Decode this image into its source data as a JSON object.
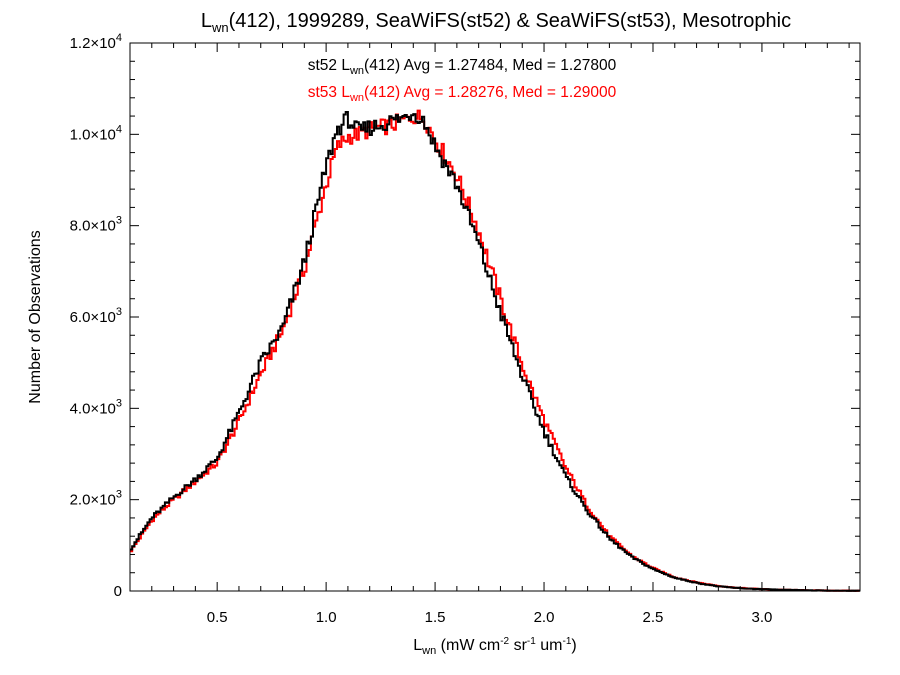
{
  "title": {
    "pre": "L",
    "sub": "wn",
    "post": "(412), 1999289, SeaWiFS(st52) & SeaWiFS(st53), Mesotrophic"
  },
  "annotations": [
    {
      "pre": "st52 L",
      "sub": "wn",
      "post": "(412) Avg = 1.27484, Med = 1.27800",
      "color": "#000000"
    },
    {
      "pre": "st53 L",
      "sub": "wn",
      "post": "(412) Avg = 1.28276, Med = 1.29000",
      "color": "#ff0000"
    }
  ],
  "chart_data": {
    "type": "line",
    "subtype": "histogram-step",
    "xlim": [
      0.1,
      3.45
    ],
    "ylim": [
      0,
      12000
    ],
    "grid": false,
    "xlabel": {
      "pre": "L",
      "sub": "wn",
      "units": " (mW cm",
      "u1": "-2",
      "s1": " sr",
      "u2": "-1",
      "s2": " um",
      "u3": "-1",
      "s3": ")"
    },
    "ylabel": "Number of Observations",
    "xticks": [
      {
        "v": 0.5,
        "label": "0.5"
      },
      {
        "v": 1.0,
        "label": "1.0"
      },
      {
        "v": 1.5,
        "label": "1.5"
      },
      {
        "v": 2.0,
        "label": "2.0"
      },
      {
        "v": 2.5,
        "label": "2.5"
      },
      {
        "v": 3.0,
        "label": "3.0"
      }
    ],
    "yticks": [
      {
        "v": 0,
        "mant": "0",
        "exp": ""
      },
      {
        "v": 2000,
        "mant": "2.0×10",
        "exp": "3"
      },
      {
        "v": 4000,
        "mant": "4.0×10",
        "exp": "3"
      },
      {
        "v": 6000,
        "mant": "6.0×10",
        "exp": "3"
      },
      {
        "v": 8000,
        "mant": "8.0×10",
        "exp": "3"
      },
      {
        "v": 10000,
        "mant": "1.0×10",
        "exp": "4"
      },
      {
        "v": 12000,
        "mant": "1.2×10",
        "exp": "4"
      }
    ],
    "series": [
      {
        "name": "st52",
        "color": "#000000",
        "x": [
          0.1,
          0.2,
          0.3,
          0.4,
          0.5,
          0.6,
          0.7,
          0.8,
          0.9,
          1.0,
          1.05,
          1.1,
          1.15,
          1.2,
          1.25,
          1.3,
          1.35,
          1.4,
          1.45,
          1.5,
          1.6,
          1.7,
          1.8,
          1.9,
          2.0,
          2.1,
          2.2,
          2.3,
          2.4,
          2.5,
          2.6,
          2.7,
          2.8,
          2.9,
          3.0,
          3.1,
          3.2,
          3.3,
          3.45
        ],
        "y": [
          900,
          1600,
          2050,
          2450,
          2900,
          3900,
          5000,
          5750,
          7200,
          9300,
          10100,
          10350,
          10050,
          10150,
          10200,
          10300,
          10350,
          10500,
          10300,
          9750,
          8900,
          7600,
          6100,
          4700,
          3500,
          2500,
          1750,
          1150,
          750,
          480,
          290,
          180,
          100,
          60,
          40,
          25,
          15,
          8,
          5
        ]
      },
      {
        "name": "st53",
        "color": "#ff0000",
        "x": [
          0.1,
          0.2,
          0.3,
          0.4,
          0.5,
          0.6,
          0.7,
          0.8,
          0.9,
          1.0,
          1.05,
          1.1,
          1.15,
          1.2,
          1.25,
          1.3,
          1.35,
          1.4,
          1.45,
          1.5,
          1.6,
          1.7,
          1.8,
          1.9,
          2.0,
          2.1,
          2.2,
          2.3,
          2.4,
          2.5,
          2.6,
          2.7,
          2.8,
          2.9,
          3.0,
          3.1,
          3.2,
          3.3,
          3.45
        ],
        "y": [
          850,
          1550,
          2000,
          2400,
          2800,
          3700,
          4750,
          5700,
          7050,
          8900,
          9700,
          9950,
          10000,
          10100,
          10150,
          10200,
          10300,
          10400,
          10350,
          9900,
          9100,
          7900,
          6400,
          4950,
          3750,
          2700,
          1850,
          1200,
          780,
          500,
          300,
          190,
          110,
          65,
          42,
          26,
          16,
          9,
          5
        ]
      }
    ]
  }
}
